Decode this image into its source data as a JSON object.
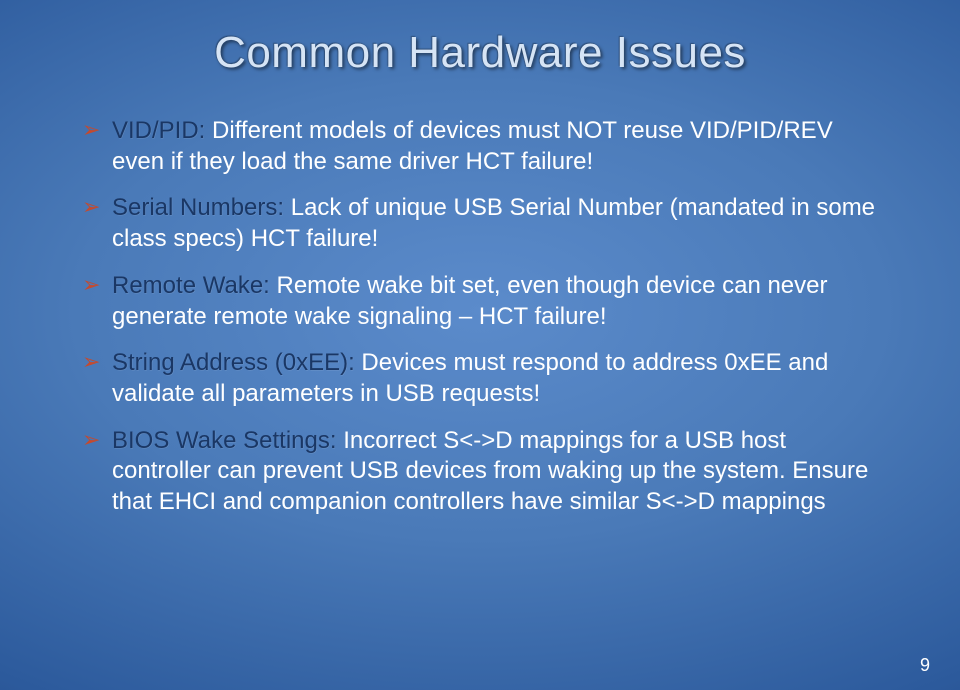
{
  "title": "Common Hardware Issues",
  "bullets": [
    {
      "label": "VID/PID:",
      "text": " Different models of devices must NOT reuse VID/PID/REV even if they load the same driver HCT failure!"
    },
    {
      "label": "Serial Numbers:",
      "text": " Lack of unique USB Serial Number (mandated in some class specs) HCT failure!"
    },
    {
      "label": "Remote Wake:",
      "text": " Remote wake bit set, even though device can never generate remote wake signaling – HCT failure!"
    },
    {
      "label": "String Address (0xEE):",
      "text": " Devices must respond to address 0xEE and validate all parameters in USB requests!"
    },
    {
      "label": "BIOS Wake Settings:",
      "text": " Incorrect S<->D mappings for a USB host controller can prevent USB devices from waking up the system. Ensure that EHCI and companion controllers have similar S<->D mappings"
    }
  ],
  "page_number": "9",
  "colors": {
    "title_color": "#d6e4f5",
    "label_color": "#1a3765",
    "body_color": "#ffffff",
    "bullet_marker_color": "#c44a2e"
  }
}
